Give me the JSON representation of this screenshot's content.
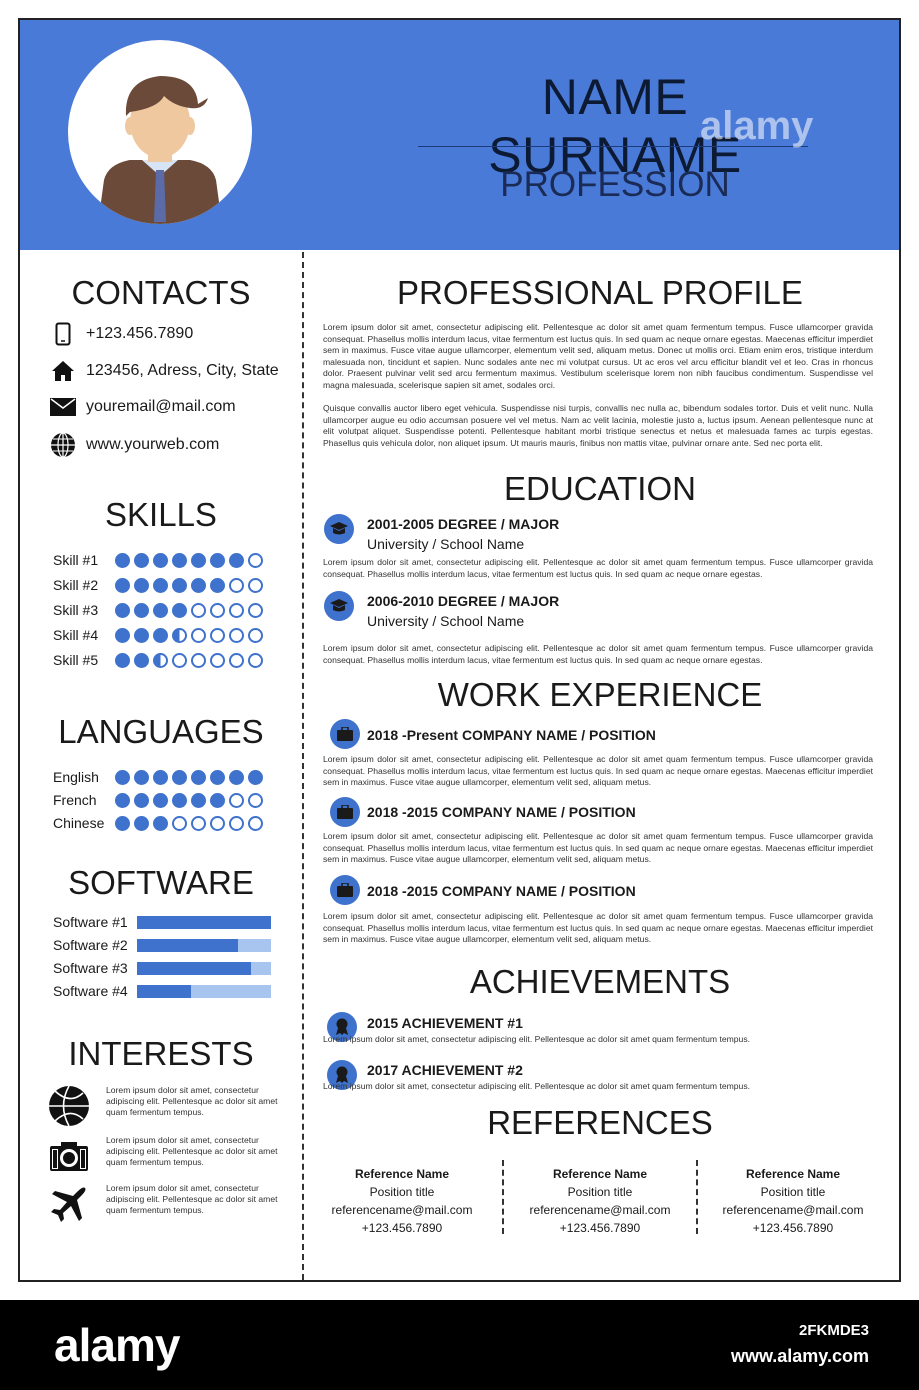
{
  "header": {
    "name": "NAME SURNAME",
    "profession": "PROFESSION",
    "accent_color": "#4a7ad8"
  },
  "contacts": {
    "title": "CONTACTS",
    "items": [
      {
        "icon": "phone-icon",
        "text": "+123.456.7890"
      },
      {
        "icon": "home-icon",
        "text": "123456, Adress, City, State"
      },
      {
        "icon": "mail-icon",
        "text": "youremail@mail.com"
      },
      {
        "icon": "globe-icon",
        "text": "www.yourweb.com"
      }
    ]
  },
  "skills": {
    "title": "SKILLS",
    "items": [
      {
        "label": "Skill #1",
        "rating": 7,
        "max": 8
      },
      {
        "label": "Skill #2",
        "rating": 6,
        "max": 8
      },
      {
        "label": "Skill #3",
        "rating": 4,
        "max": 8
      },
      {
        "label": "Skill #4",
        "rating": 3.5,
        "max": 8
      },
      {
        "label": "Skill #5",
        "rating": 2.5,
        "max": 8
      }
    ]
  },
  "languages": {
    "title": "LANGUAGES",
    "items": [
      {
        "label": "English",
        "rating": 8,
        "max": 8
      },
      {
        "label": "French",
        "rating": 6,
        "max": 8
      },
      {
        "label": "Chinese",
        "rating": 3,
        "max": 8
      }
    ]
  },
  "software": {
    "title": "SOFTWARE",
    "items": [
      {
        "label": "Software #1",
        "level": 1.0
      },
      {
        "label": "Software #2",
        "level": 0.75
      },
      {
        "label": "Software #3",
        "level": 0.85
      },
      {
        "label": "Software #4",
        "level": 0.4
      }
    ]
  },
  "interests": {
    "title": "INTERESTS",
    "items": [
      {
        "icon": "basketball-icon",
        "text": "Lorem ipsum dolor sit amet, consectetur adipiscing elit. Pellentesque ac dolor sit amet quam fermentum tempus."
      },
      {
        "icon": "camera-icon",
        "text": "Lorem ipsum dolor sit amet, consectetur adipiscing elit. Pellentesque ac dolor sit amet quam fermentum tempus."
      },
      {
        "icon": "airplane-icon",
        "text": "Lorem ipsum dolor sit amet, consectetur adipiscing elit. Pellentesque ac dolor sit amet quam fermentum tempus."
      }
    ]
  },
  "profile": {
    "title": "PROFESSIONAL PROFILE",
    "p1": "Lorem ipsum dolor sit amet, consectetur adipiscing elit. Pellentesque ac dolor sit amet quam fermentum tempus. Fusce ullamcorper gravida consequat. Phasellus mollis interdum lacus, vitae fermentum est luctus quis. In sed quam ac neque ornare egestas. Maecenas efficitur imperdiet sem in maximus. Fusce vitae augue ullamcorper, elementum velit sed, aliquam metus. Donec ut mollis orci. Etiam enim eros, tristique interdum malesuada non, tincidunt et sapien. Nunc sodales ante nec mi volutpat cursus. Ut ac eros vel arcu efficitur blandit vel et leo. Cras in rhoncus dolor. Praesent pulvinar velit sed arcu fermentum maximus. Vestibulum scelerisque lorem non nibh faucibus condimentum. Suspendisse vel magna malesuada, scelerisque sapien sit amet, sodales orci.",
    "p2": "Quisque convallis auctor libero eget vehicula. Suspendisse nisi turpis, convallis nec nulla ac, bibendum sodales tortor. Duis et velit nunc. Nulla ullamcorper augue eu odio accumsan posuere vel vel metus. Nam ac velit lacinia, molestie justo a, luctus ipsum. Aenean pellentesque nunc at elit volutpat aliquet. Suspendisse potenti. Pellentesque habitant morbi tristique senectus et netus et malesuada fames ac turpis egestas. Phasellus quis vehicula dolor, non aliquet ipsum. Ut mauris mauris, finibus non mattis vitae, pulvinar ornare ante. Sed nec porta elit."
  },
  "education": {
    "title": "EDUCATION",
    "items": [
      {
        "head": "2001-2005    DEGREE / MAJOR",
        "sub": "University / School Name",
        "text": "Lorem ipsum dolor sit amet, consectetur adipiscing elit. Pellentesque ac dolor sit amet quam fermentum tempus. Fusce ullamcorper gravida consequat. Phasellus mollis interdum lacus, vitae fermentum est luctus quis. In sed quam ac neque ornare egestas."
      },
      {
        "head": "2006-2010    DEGREE / MAJOR",
        "sub": "University / School Name",
        "text": "Lorem ipsum dolor sit amet, consectetur adipiscing elit. Pellentesque ac dolor sit amet quam fermentum tempus. Fusce ullamcorper gravida consequat. Phasellus mollis interdum lacus, vitae fermentum est luctus quis. In sed quam ac neque ornare egestas."
      }
    ]
  },
  "work": {
    "title": "WORK EXPERIENCE",
    "items": [
      {
        "head": "2018 -Present   COMPANY NAME / POSITION",
        "text": "Lorem ipsum dolor sit amet, consectetur adipiscing elit. Pellentesque ac dolor sit amet quam fermentum tempus. Fusce ullamcorper gravida consequat. Phasellus mollis interdum lacus, vitae fermentum est luctus quis. In sed quam ac neque ornare egestas. Maecenas efficitur imperdiet sem in maximus. Fusce vitae augue ullamcorper, elementum velit sed, aliquam metus."
      },
      {
        "head": "2018 -2015   COMPANY NAME / POSITION",
        "text": "Lorem ipsum dolor sit amet, consectetur adipiscing elit. Pellentesque ac dolor sit amet quam fermentum tempus. Fusce ullamcorper gravida consequat. Phasellus mollis interdum lacus, vitae fermentum est luctus quis. In sed quam ac neque ornare egestas. Maecenas efficitur imperdiet sem in maximus. Fusce vitae augue ullamcorper, elementum velit sed, aliquam metus."
      },
      {
        "head": "2018 -2015   COMPANY NAME / POSITION",
        "text": "Lorem ipsum dolor sit amet, consectetur adipiscing elit. Pellentesque ac dolor sit amet quam fermentum tempus. Fusce ullamcorper gravida consequat. Phasellus mollis interdum lacus, vitae fermentum est luctus quis. In sed quam ac neque ornare egestas. Maecenas efficitur imperdiet sem in maximus. Fusce vitae augue ullamcorper, elementum velit sed, aliquam metus."
      }
    ]
  },
  "achievements": {
    "title": "ACHIEVEMENTS",
    "items": [
      {
        "head": "2015  ACHIEVEMENT #1",
        "text": "Lorem ipsum dolor sit amet, consectetur adipiscing elit. Pellentesque ac dolor sit amet quam fermentum tempus."
      },
      {
        "head": "2017  ACHIEVEMENT #2",
        "text": "Lorem ipsum dolor sit amet, consectetur adipiscing elit. Pellentesque ac dolor sit amet quam fermentum tempus."
      }
    ]
  },
  "references": {
    "title": "REFERENCES",
    "items": [
      {
        "name": "Reference Name",
        "position": "Position title",
        "email": "referencename@mail.com",
        "phone": "+123.456.7890"
      },
      {
        "name": "Reference Name",
        "position": "Position title",
        "email": "referencename@mail.com",
        "phone": "+123.456.7890"
      },
      {
        "name": "Reference Name",
        "position": "Position title",
        "email": "referencename@mail.com",
        "phone": "+123.456.7890"
      }
    ]
  },
  "footer": {
    "logo": "alamy",
    "image_id": "2FKMDE3",
    "url": "www.alamy.com",
    "watermark": "alamy"
  }
}
